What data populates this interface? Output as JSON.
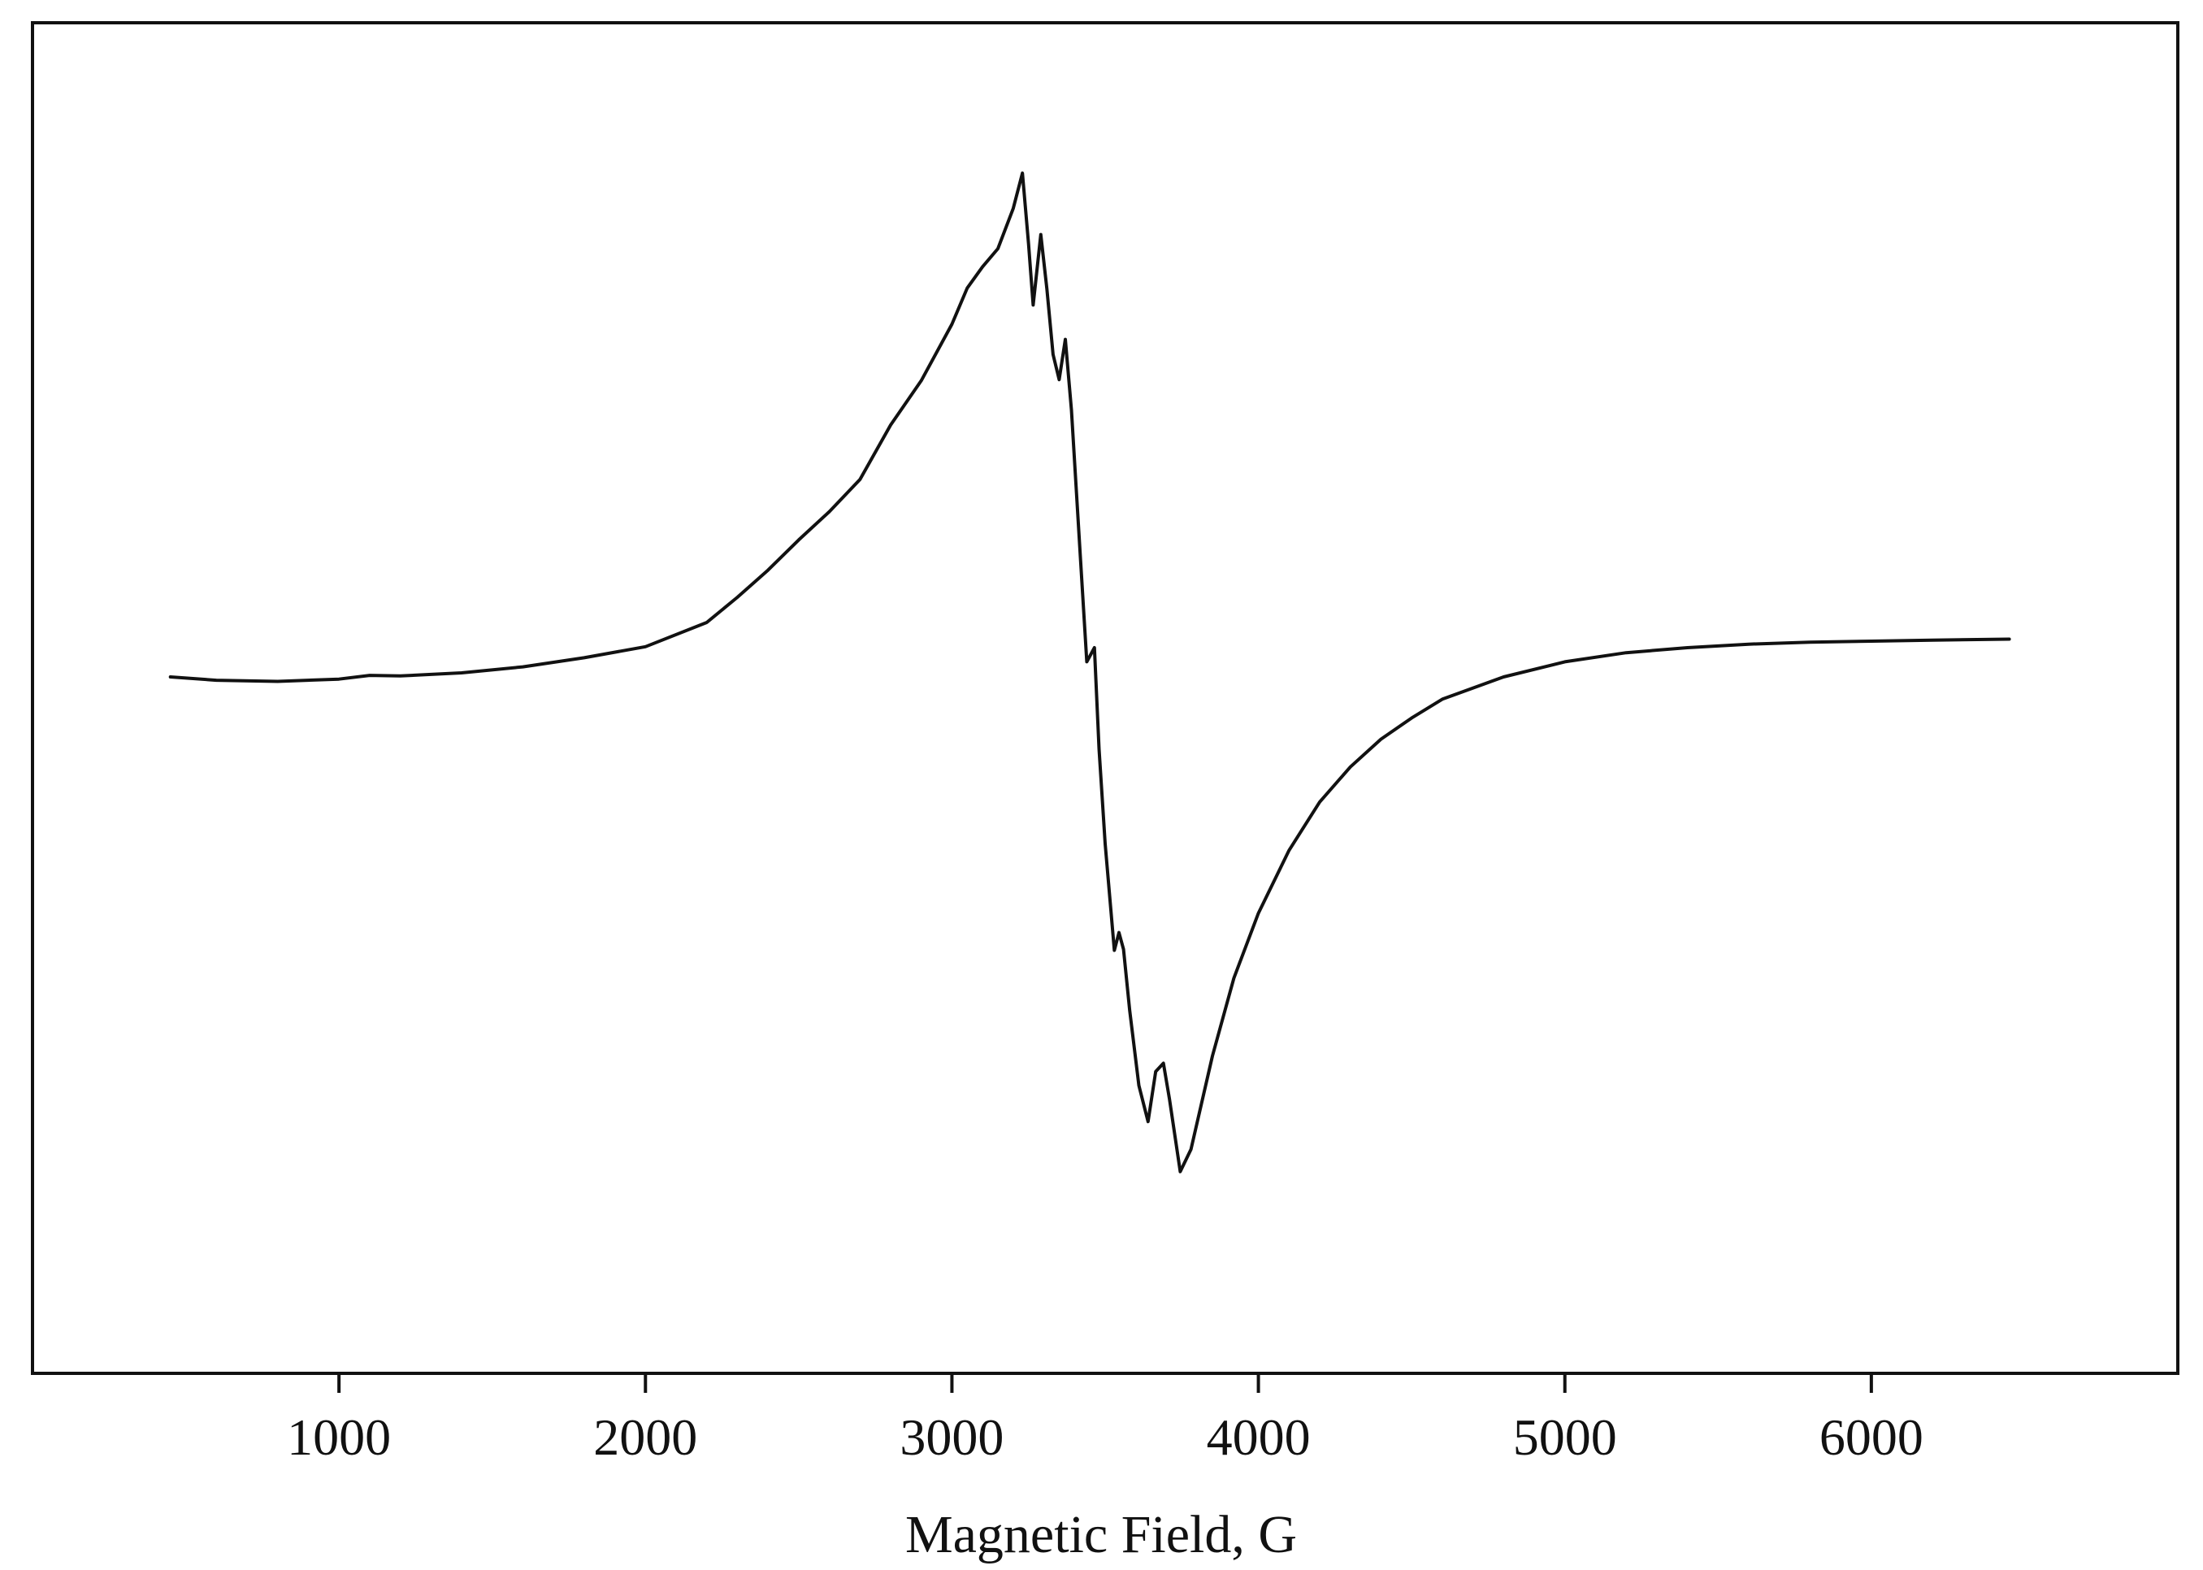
{
  "chart_data": {
    "type": "line",
    "title": "",
    "xlabel": "Magnetic Field, G",
    "ylabel": "",
    "xlim": [
      0,
      7000
    ],
    "ylim": [
      -1.0,
      1.0
    ],
    "x_ticks": [
      1000,
      2000,
      3000,
      4000,
      5000,
      6000
    ],
    "x_tick_labels": [
      "1000",
      "2000",
      "3000",
      "4000",
      "5000",
      "6000"
    ],
    "y_ticks_visible": false,
    "grid": false,
    "legend": "none",
    "line_color": "#111111",
    "series": [
      {
        "points": [
          [
            450,
            0.0
          ],
          [
            600,
            -0.006
          ],
          [
            800,
            -0.008
          ],
          [
            1000,
            -0.004
          ],
          [
            1100,
            0.003
          ],
          [
            1200,
            0.002
          ],
          [
            1400,
            0.008
          ],
          [
            1600,
            0.02
          ],
          [
            1800,
            0.038
          ],
          [
            2000,
            0.06
          ],
          [
            2200,
            0.108
          ],
          [
            2300,
            0.158
          ],
          [
            2400,
            0.212
          ],
          [
            2500,
            0.272
          ],
          [
            2600,
            0.328
          ],
          [
            2700,
            0.392
          ],
          [
            2800,
            0.5
          ],
          [
            2900,
            0.588
          ],
          [
            3000,
            0.7
          ],
          [
            3050,
            0.772
          ],
          [
            3100,
            0.814
          ],
          [
            3150,
            0.85
          ],
          [
            3200,
            0.93
          ],
          [
            3230,
            1.0
          ],
          [
            3250,
            0.86
          ],
          [
            3265,
            0.738
          ],
          [
            3290,
            0.878
          ],
          [
            3310,
            0.77
          ],
          [
            3330,
            0.64
          ],
          [
            3350,
            0.59
          ],
          [
            3370,
            0.67
          ],
          [
            3390,
            0.53
          ],
          [
            3420,
            0.23
          ],
          [
            3440,
            0.03
          ],
          [
            3465,
            0.058
          ],
          [
            3480,
            -0.13
          ],
          [
            3500,
            -0.3
          ],
          [
            3530,
            -0.492
          ],
          [
            3545,
            -0.46
          ],
          [
            3560,
            -0.49
          ],
          [
            3580,
            -0.6
          ],
          [
            3610,
            -0.735
          ],
          [
            3640,
            -0.8
          ],
          [
            3665,
            -0.71
          ],
          [
            3690,
            -0.695
          ],
          [
            3710,
            -0.76
          ],
          [
            3745,
            -0.89
          ],
          [
            3780,
            -0.85
          ],
          [
            3850,
            -0.682
          ],
          [
            3920,
            -0.542
          ],
          [
            4000,
            -0.425
          ],
          [
            4100,
            -0.312
          ],
          [
            4200,
            -0.225
          ],
          [
            4300,
            -0.162
          ],
          [
            4400,
            -0.112
          ],
          [
            4500,
            -0.074
          ],
          [
            4600,
            -0.04
          ],
          [
            4800,
            0.0
          ],
          [
            5000,
            0.03
          ],
          [
            5200,
            0.048
          ],
          [
            5400,
            0.058
          ],
          [
            5600,
            0.065
          ],
          [
            5800,
            0.069
          ],
          [
            6000,
            0.071
          ],
          [
            6200,
            0.073
          ],
          [
            6450,
            0.075
          ]
        ]
      }
    ]
  }
}
